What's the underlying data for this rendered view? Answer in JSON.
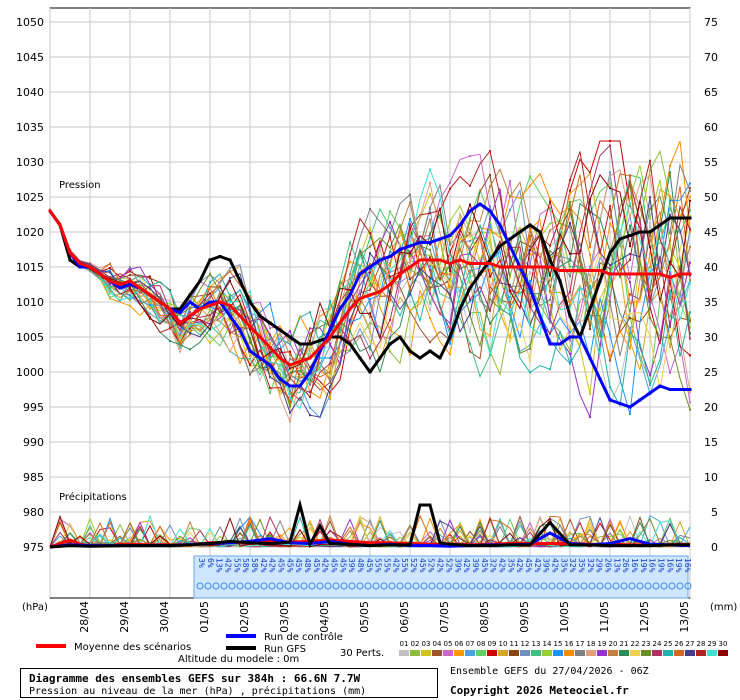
{
  "chart_data": {
    "type": "line",
    "title": "Diagramme des ensembles GEFS sur 384h : 66.6N 7.7W",
    "subtitle": "Pression au niveau de la mer (hPa) , précipitations (mm)",
    "ylabel_left": "(hPa)",
    "ylabel_right": "(mm)",
    "section_pressure": "Pression",
    "section_precip": "Précipitations",
    "ylim_pressure": [
      972,
      1052
    ],
    "ylim_precip": [
      0,
      75
    ],
    "yticks_left": [
      975,
      980,
      985,
      990,
      995,
      1000,
      1005,
      1010,
      1015,
      1020,
      1025,
      1030,
      1035,
      1040,
      1045,
      1050
    ],
    "yticks_right": [
      0,
      5,
      10,
      15,
      20,
      25,
      30,
      35,
      40,
      45,
      50,
      55,
      60,
      65,
      70,
      75
    ],
    "x_labels": [
      "28/04",
      "29/04",
      "30/04",
      "01/05",
      "02/05",
      "03/05",
      "04/05",
      "05/05",
      "06/05",
      "07/05",
      "08/05",
      "09/05",
      "10/05",
      "11/05",
      "12/05",
      "13/05"
    ],
    "grid": true,
    "prob_labels": [
      "3%",
      "6%",
      "13%",
      "42%",
      "55%",
      "58%",
      "58%",
      "42%",
      "42%",
      "45%",
      "45%",
      "45%",
      "48%",
      "45%",
      "42%",
      "45%",
      "45%",
      "39%",
      "48%",
      "45%",
      "55%",
      "55%",
      "42%",
      "55%",
      "52%",
      "45%",
      "52%",
      "42%",
      "52%",
      "39%",
      "42%",
      "39%",
      "45%",
      "32%",
      "42%",
      "35%",
      "42%",
      "45%",
      "42%",
      "39%",
      "42%",
      "35%",
      "32%",
      "35%",
      "32%",
      "29%",
      "26%",
      "13%",
      "26%",
      "16%",
      "19%",
      "16%",
      "19%",
      "16%",
      "19%",
      "16%"
    ],
    "series": [
      {
        "name": "Moyenne des scénarios",
        "color": "#ff0000",
        "x": [
          0,
          0.25,
          0.5,
          0.75,
          1,
          1.25,
          1.5,
          1.75,
          2,
          2.25,
          2.5,
          2.75,
          3,
          3.25,
          3.5,
          3.75,
          4,
          4.25,
          4.5,
          4.75,
          5,
          5.25,
          5.5,
          5.75,
          6,
          6.25,
          6.5,
          6.75,
          7,
          7.25,
          7.5,
          7.75,
          8,
          8.25,
          8.5,
          8.75,
          9,
          9.25,
          9.5,
          9.75,
          10,
          10.25,
          10.5,
          10.75,
          11,
          11.25,
          11.5,
          11.75,
          12,
          12.25,
          12.5,
          12.75,
          13,
          13.25,
          13.5,
          13.75,
          14,
          14.25,
          14.5,
          14.75,
          15,
          15.25,
          15.5,
          15.75,
          16
        ],
        "values": [
          1023,
          1021,
          1017,
          1015.5,
          1015,
          1014,
          1013,
          1012.5,
          1013,
          1012,
          1011,
          1010,
          1009,
          1007,
          1008,
          1009,
          1009.5,
          1010,
          1009.5,
          1008,
          1006.5,
          1005,
          1003.5,
          1002,
          1001,
          1001.5,
          1002,
          1003.5,
          1005,
          1007,
          1009,
          1010.5,
          1011,
          1011.5,
          1012.5,
          1014,
          1015,
          1016,
          1016,
          1016,
          1015.5,
          1016,
          1015.5,
          1015.5,
          1015.5,
          1015,
          1015,
          1015,
          1015,
          1015,
          1015,
          1014.5,
          1014.5,
          1014.5,
          1014.5,
          1014.5,
          1014,
          1014,
          1014,
          1014,
          1014,
          1014,
          1013.5,
          1014,
          1014
        ]
      },
      {
        "name": "Run de contrôle",
        "color": "#0000ff",
        "x": [
          0,
          0.25,
          0.5,
          0.75,
          1,
          1.25,
          1.5,
          1.75,
          2,
          2.25,
          2.5,
          2.75,
          3,
          3.25,
          3.5,
          3.75,
          4,
          4.25,
          4.5,
          4.75,
          5,
          5.25,
          5.5,
          5.75,
          6,
          6.25,
          6.5,
          6.75,
          7,
          7.25,
          7.5,
          7.75,
          8,
          8.25,
          8.5,
          8.75,
          9,
          9.25,
          9.5,
          9.75,
          10,
          10.25,
          10.5,
          10.75,
          11,
          11.25,
          11.5,
          11.75,
          12,
          12.25,
          12.5,
          12.75,
          13,
          13.25,
          13.5,
          13.75,
          14,
          14.25,
          14.5,
          14.75,
          15,
          15.25,
          15.5,
          15.75,
          16
        ],
        "values": [
          1023,
          1021,
          1017,
          1015,
          1015,
          1014,
          1013,
          1012,
          1012.5,
          1012,
          1011,
          1010,
          1009,
          1008.5,
          1010,
          1009,
          1010,
          1010,
          1008,
          1006,
          1003,
          1002,
          1001,
          999,
          998,
          998,
          1000,
          1003,
          1006,
          1009,
          1011,
          1014,
          1015,
          1016,
          1016.5,
          1017.5,
          1018,
          1018.5,
          1018.5,
          1019,
          1019.5,
          1021,
          1023,
          1024,
          1023,
          1021,
          1018,
          1015,
          1012,
          1008,
          1004,
          1004,
          1005,
          1005,
          1002,
          999,
          996,
          995.5,
          995,
          996,
          997,
          998,
          997.5,
          997.5,
          997.5
        ]
      },
      {
        "name": "Run GFS",
        "color": "#000000",
        "x": [
          0,
          0.25,
          0.5,
          0.75,
          1,
          1.25,
          1.5,
          1.75,
          2,
          2.25,
          2.5,
          2.75,
          3,
          3.25,
          3.5,
          3.75,
          4,
          4.25,
          4.5,
          4.75,
          5,
          5.25,
          5.5,
          5.75,
          6,
          6.25,
          6.5,
          6.75,
          7,
          7.25,
          7.5,
          7.75,
          8,
          8.25,
          8.5,
          8.75,
          9,
          9.25,
          9.5,
          9.75,
          10,
          10.25,
          10.5,
          10.75,
          11,
          11.25,
          11.5,
          11.75,
          12,
          12.25,
          12.5,
          12.75,
          13,
          13.25,
          13.5,
          13.75,
          14,
          14.25,
          14.5,
          14.75,
          15,
          15.25,
          15.5,
          15.75,
          16
        ],
        "values": [
          1023,
          1021,
          1016,
          1015,
          1015,
          1014,
          1013,
          1012,
          1012.5,
          1012,
          1011,
          1010,
          1009,
          1009,
          1011,
          1013,
          1016,
          1016.5,
          1016,
          1013,
          1010,
          1008,
          1007,
          1006,
          1005,
          1004,
          1004,
          1004.5,
          1005,
          1005,
          1004,
          1002,
          1000,
          1002,
          1004,
          1005,
          1003,
          1002,
          1003,
          1002,
          1005,
          1009,
          1012,
          1014,
          1016,
          1018,
          1019,
          1020,
          1021,
          1020,
          1016,
          1013,
          1008,
          1005,
          1009,
          1013,
          1017,
          1019,
          1019.5,
          1020,
          1020,
          1021,
          1022,
          1022,
          1022
        ]
      }
    ],
    "precip_series": [
      {
        "name": "Moyenne des scénarios",
        "color": "#ff0000",
        "x": [
          0,
          0.25,
          0.5,
          0.75,
          1,
          1.5,
          2,
          2.5,
          3,
          3.5,
          4,
          4.5,
          5,
          5.5,
          6,
          6.5,
          7,
          7.5,
          8,
          8.5,
          9,
          9.5,
          10,
          10.5,
          11,
          11.5,
          12,
          12.5,
          13,
          13.5,
          14,
          14.5,
          15,
          15.5,
          16
        ],
        "values": [
          0,
          0.5,
          1,
          0.4,
          0.2,
          0.2,
          0.4,
          0.3,
          0.3,
          0.3,
          0.6,
          0.6,
          0.7,
          0.8,
          0.7,
          0.8,
          1,
          0.8,
          0.6,
          0.6,
          0.5,
          0.4,
          0.4,
          0.3,
          0.4,
          0.5,
          0.5,
          0.5,
          0.5,
          0.4,
          0.3,
          0.3,
          0.3,
          0.3,
          0.3
        ]
      },
      {
        "name": "Run de contrôle",
        "color": "#0000ff",
        "x": [
          0,
          0.5,
          1,
          2,
          3,
          4,
          4.5,
          5,
          5.5,
          6,
          6.5,
          7,
          7.5,
          8,
          8.5,
          9,
          9.5,
          10,
          10.5,
          11,
          11.5,
          12,
          12.5,
          13,
          13.5,
          14,
          14.5,
          15,
          15.5,
          16
        ],
        "values": [
          0,
          0.3,
          0.2,
          0.2,
          0.2,
          0.5,
          0.6,
          0.8,
          1.2,
          0.6,
          0.5,
          0.8,
          0.4,
          0.2,
          0.4,
          0.2,
          0.2,
          0.1,
          0.2,
          0.3,
          0.3,
          0.4,
          2,
          0.5,
          0.3,
          0.5,
          1.2,
          0.4,
          0.3,
          0.2
        ]
      },
      {
        "name": "Run GFS",
        "color": "#000000",
        "x": [
          0,
          0.5,
          1,
          2,
          3,
          3.5,
          4,
          4.5,
          5,
          5.5,
          6,
          6.25,
          6.5,
          6.75,
          7,
          7.5,
          8,
          8.5,
          9,
          9.25,
          9.5,
          9.75,
          10,
          10.5,
          11,
          11.5,
          12,
          12.5,
          13,
          13.5,
          14,
          14.5,
          15,
          15.5,
          16
        ],
        "values": [
          0,
          0.2,
          0.1,
          0.2,
          0.2,
          0.3,
          0.5,
          0.8,
          0.6,
          0.5,
          0.7,
          6,
          0.4,
          3,
          0.5,
          0.4,
          0.2,
          0.3,
          0.3,
          6,
          6,
          0.6,
          0.4,
          0.2,
          0.2,
          0.3,
          0.3,
          3.5,
          0.3,
          0.3,
          0.2,
          0.2,
          0.2,
          0.3,
          0.3
        ]
      }
    ],
    "legend": {
      "mean_label": "Moyenne des scénarios",
      "control_label": "Run de contrôle",
      "gfs_label": "Run GFS",
      "perts_label": "30 Perts.",
      "pert_numbers": [
        "01",
        "02",
        "03",
        "04",
        "05",
        "06",
        "07",
        "08",
        "09",
        "10",
        "11",
        "12",
        "13",
        "14",
        "15",
        "16",
        "17",
        "18",
        "19",
        "20",
        "21",
        "22",
        "23",
        "24",
        "25",
        "26",
        "27",
        "28",
        "29",
        "30"
      ],
      "pert_colors": [
        "#c0c0c0",
        "#8fbc3a",
        "#d0c020",
        "#a0522d",
        "#cc66cc",
        "#ff9900",
        "#4aa0e0",
        "#66cc66",
        "#cc0000",
        "#daa520",
        "#8b4513",
        "#7090c0",
        "#40c080",
        "#9acd32",
        "#1e90ff",
        "#ff8c00",
        "#808080",
        "#e0a080",
        "#9932cc",
        "#c08040",
        "#2e8b57",
        "#f0d050",
        "#6b8e23",
        "#b03060",
        "#20b2aa",
        "#d2691e",
        "#483d8b",
        "#b22222",
        "#40e0d0",
        "#8b0000"
      ]
    },
    "altitude_label": "Altitude du modele : 0m"
  },
  "footer": {
    "title": "Diagramme des ensembles GEFS sur 384h : 66.6N 7.7W",
    "subtitle": "Pression au niveau de la mer (hPa) , précipitations (mm)",
    "run": "Ensemble GEFS du 27/04/2026 - 06Z",
    "copyright": "Copyright 2026 Meteociel.fr"
  }
}
